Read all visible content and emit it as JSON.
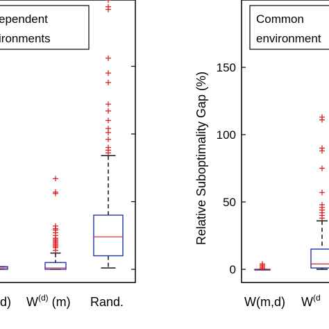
{
  "chart_data": [
    {
      "type": "box",
      "legend_text": [
        "ependent",
        "ironments"
      ],
      "categories": [
        {
          "base": "d)",
          "sup": ""
        },
        {
          "base": "W",
          "sup": "(d)",
          "suffix": " (m)"
        },
        {
          "base": "Rand.",
          "sup": ""
        }
      ],
      "ylim": [
        -5,
        205
      ],
      "grid": false,
      "boxes": [
        {
          "q1": 0,
          "median": 1,
          "q3": 2,
          "whisker_low": 0,
          "whisker_high": 2,
          "outliers": []
        },
        {
          "q1": 0,
          "median": 1,
          "q3": 5,
          "whisker_low": 0,
          "whisker_high": 12,
          "outliers": [
            14,
            16,
            17,
            18,
            19,
            20,
            21,
            22,
            23,
            25,
            27,
            29,
            30,
            32,
            56,
            57,
            67
          ]
        },
        {
          "q1": 10,
          "median": 24,
          "q3": 40,
          "whisker_low": 1,
          "whisker_high": 84,
          "outliers": [
            86,
            88,
            90,
            96,
            101,
            104,
            110,
            117,
            122,
            138,
            145,
            156,
            192,
            194,
            199
          ]
        }
      ]
    },
    {
      "type": "box",
      "ylabel": "Relative Suboptimality Gap (%)",
      "legend_text": [
        "Common",
        "environment"
      ],
      "yticks": [
        0,
        50,
        100,
        150
      ],
      "ylim": [
        -9,
        200
      ],
      "grid": false,
      "categories": [
        {
          "base": "W(m,d)",
          "sup": ""
        },
        {
          "base": "W",
          "sup": "(d",
          "suffix": ""
        }
      ],
      "boxes": [
        {
          "q1": 0,
          "median": 0,
          "q3": 0,
          "whisker_low": 0,
          "whisker_high": 0,
          "outliers": [
            1,
            2,
            3,
            4
          ]
        },
        {
          "q1": 1,
          "median": 4,
          "q3": 15,
          "whisker_low": 0,
          "whisker_high": 36,
          "outliers": [
            38,
            40,
            42,
            44,
            46,
            48,
            57,
            75,
            88,
            90,
            111,
            113
          ]
        }
      ]
    }
  ],
  "colors": {
    "box": "#2233aa",
    "median": "#cc2222",
    "outlier": "#dd2222",
    "axis": "#000000"
  }
}
